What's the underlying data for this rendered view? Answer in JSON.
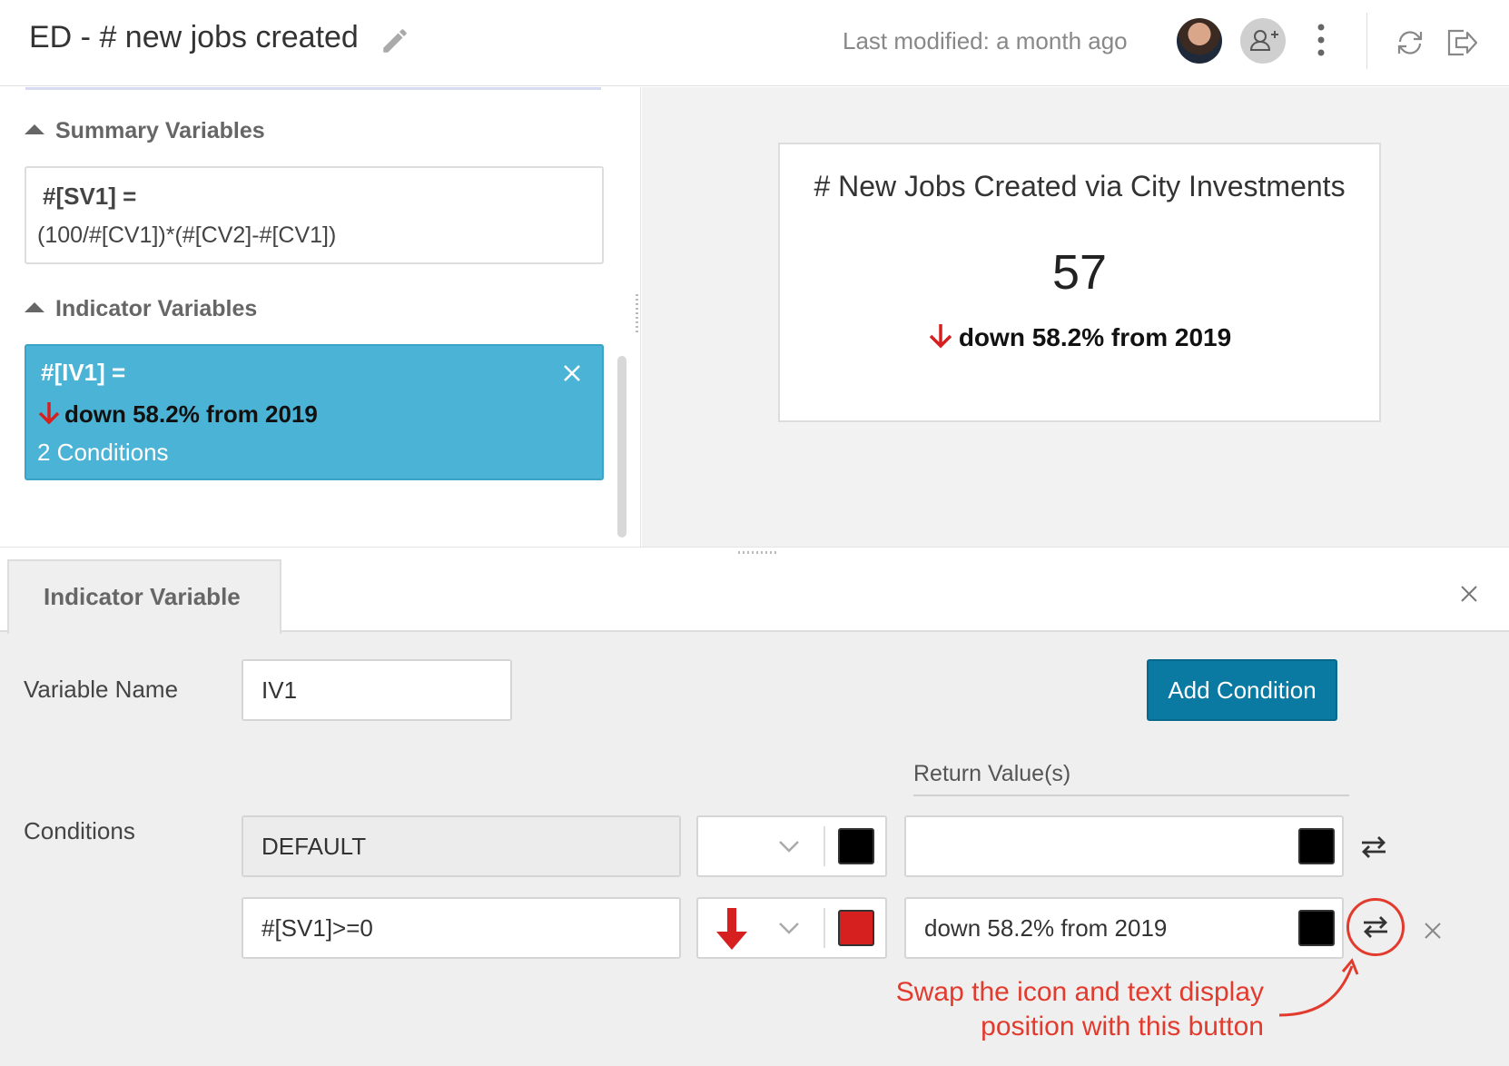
{
  "header": {
    "title": "ED - # new jobs created",
    "last_modified": "Last modified: a month ago"
  },
  "sidebar": {
    "summary_section": "Summary Variables",
    "summary_var": {
      "name": "#[SV1]  =",
      "formula": "(100/#[CV1])*(#[CV2]-#[CV1])"
    },
    "indicator_section": "Indicator Variables",
    "indicator_var": {
      "name": "#[IV1] =",
      "text": "down 58.2% from 2019",
      "conditions": "2 Conditions"
    }
  },
  "preview": {
    "title": "# New Jobs Created via City Investments",
    "value": "57",
    "change": "down 58.2% from 2019"
  },
  "editor": {
    "tab_label": "Indicator Variable",
    "variable_name_label": "Variable Name",
    "variable_name_value": "IV1",
    "add_condition": "Add Condition",
    "return_values_label": "Return Value(s)",
    "conditions_label": "Conditions",
    "conditions": [
      {
        "condition": "DEFAULT",
        "icon": "none",
        "icon_color": "#000000",
        "return_text": "",
        "text_color": "#000000"
      },
      {
        "condition": "#[SV1]>=0",
        "icon": "arrow-down-icon",
        "icon_color": "#d62020",
        "return_text": "down 58.2% from 2019",
        "text_color": "#000000"
      }
    ]
  },
  "annotation": {
    "line1": "Swap the icon and text display",
    "line2": "position with this button"
  },
  "colors": {
    "accent": "#0a7aa3",
    "selected_card": "#4bb4d6",
    "down_arrow": "#d62020",
    "annotation": "#e23b2e"
  }
}
